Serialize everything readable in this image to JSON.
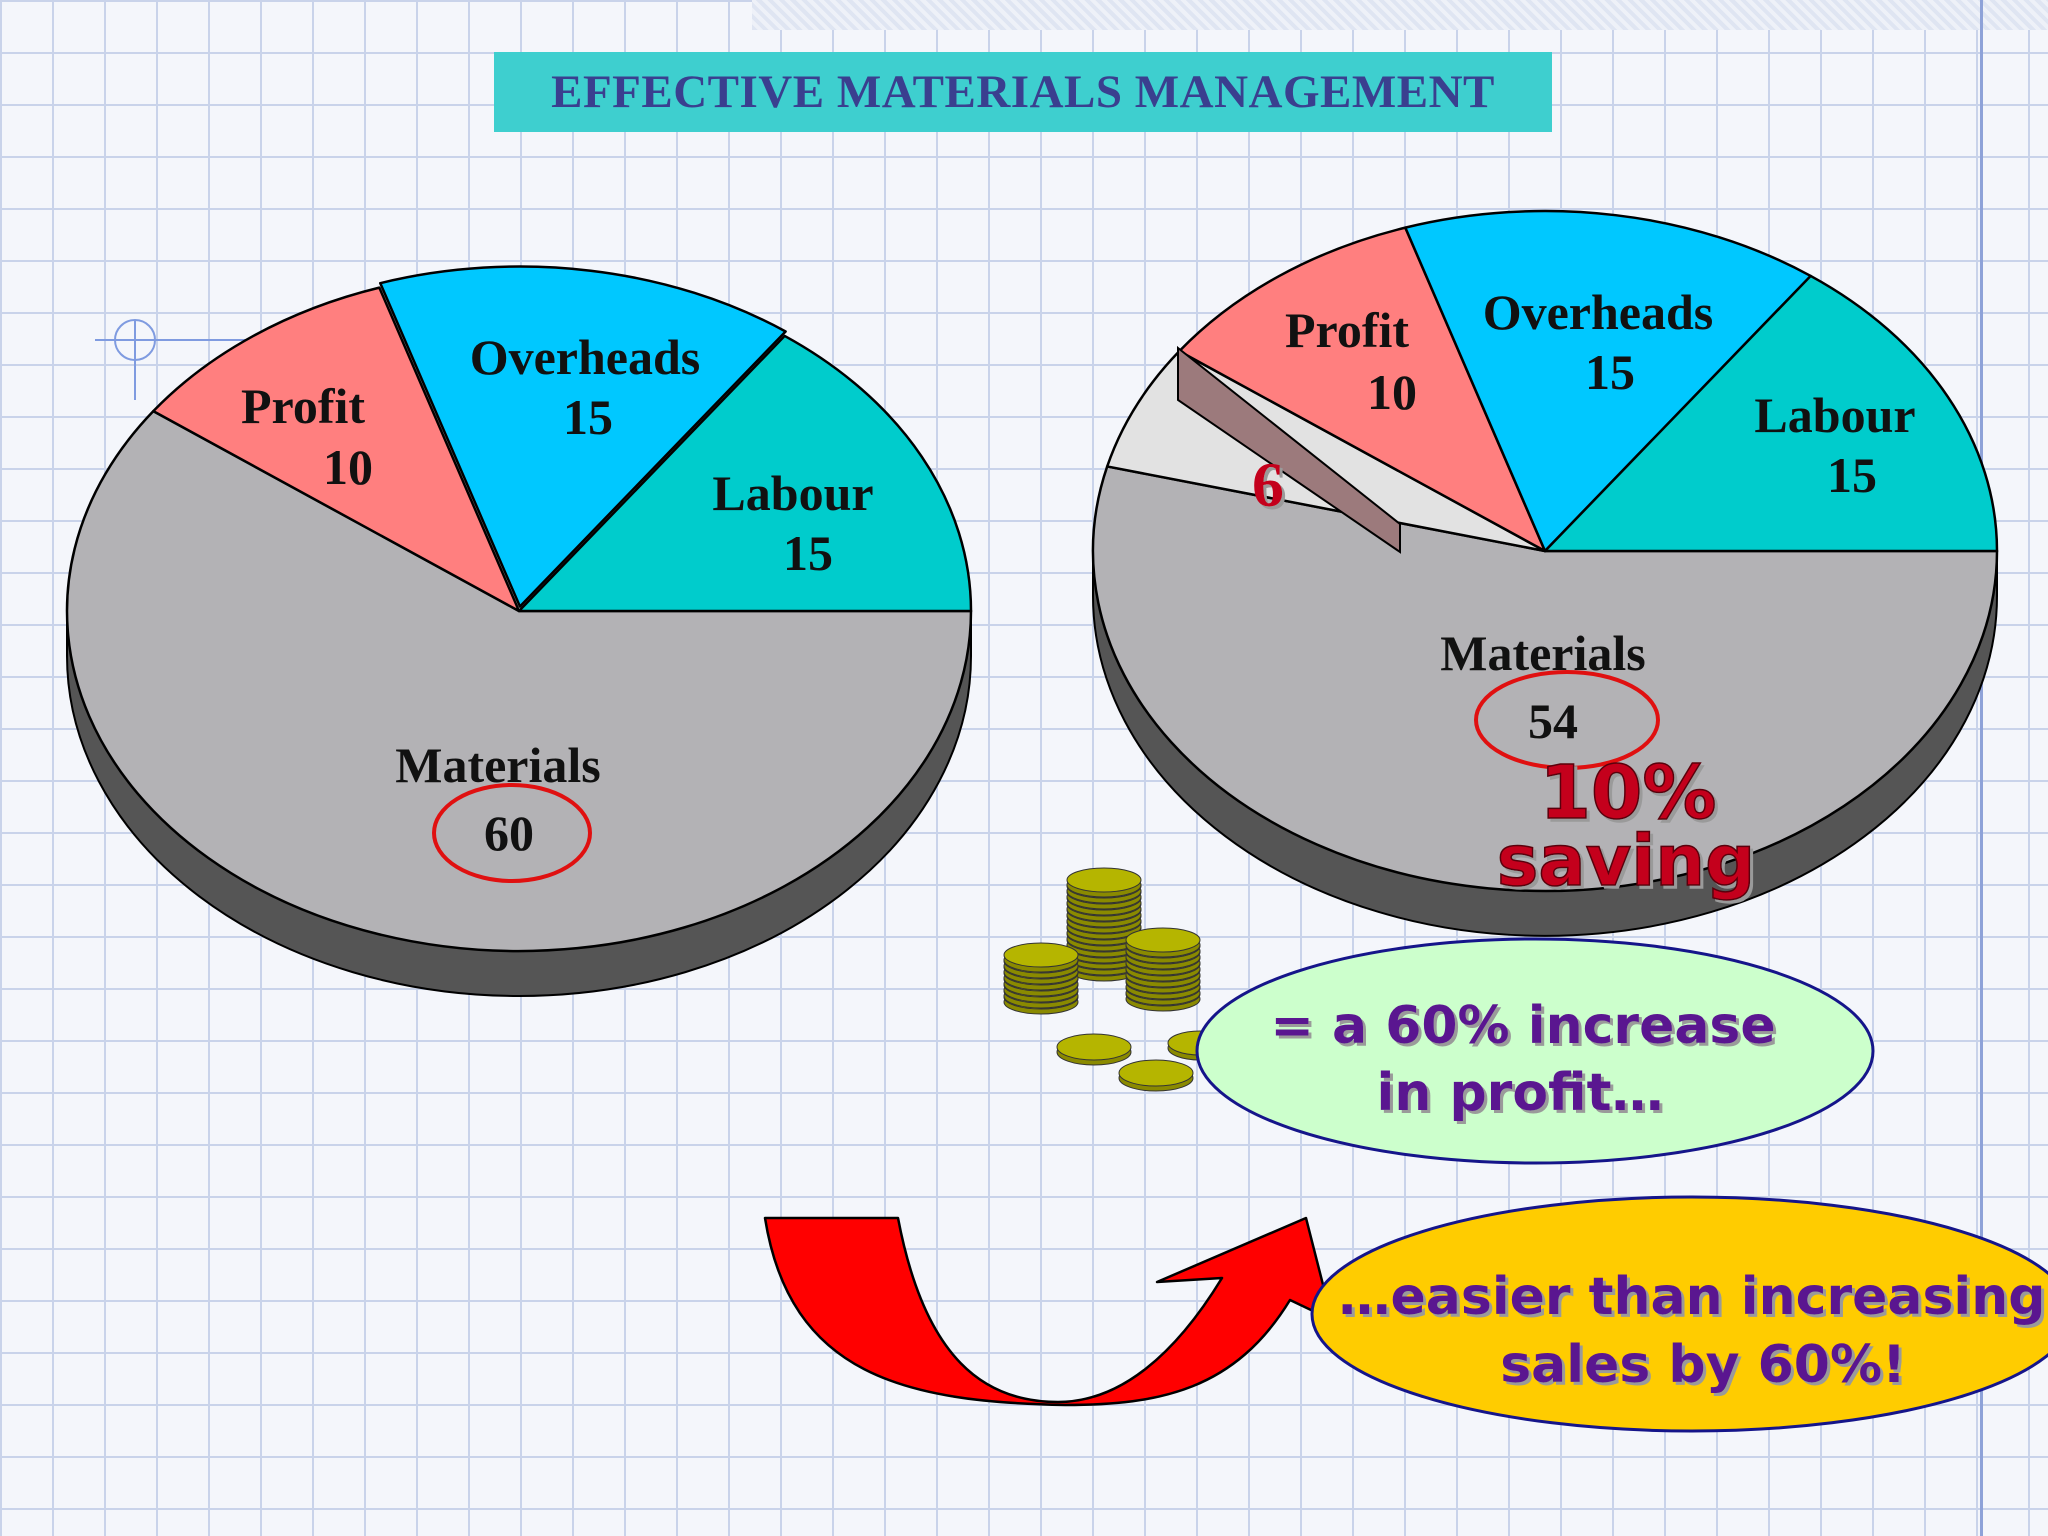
{
  "title": "EFFECTIVE MATERIALS MANAGEMENT",
  "chart_data": [
    {
      "type": "pie",
      "categories": [
        "Materials",
        "Profit",
        "Overheads",
        "Labour"
      ],
      "values": [
        60,
        10,
        15,
        15
      ],
      "colors": [
        "#b3b2b5",
        "#ff7f7f",
        "#00c8ff",
        "#00cccc"
      ],
      "highlight": "Materials"
    },
    {
      "type": "pie",
      "categories": [
        "Materials",
        "Saving",
        "Profit",
        "Overheads",
        "Labour"
      ],
      "values": [
        54,
        6,
        10,
        15,
        15
      ],
      "colors": [
        "#b3b2b5",
        "#e2e2e2",
        "#ff7f7f",
        "#00c8ff",
        "#00cccc"
      ],
      "highlight": "Materials",
      "saving_label": "6"
    }
  ],
  "callouts": {
    "saving_percent": "10%",
    "saving_word": "saving",
    "profit_line1": "= a 60% increase",
    "profit_line2": "in profit…",
    "sales_line1": "…easier than increasing",
    "sales_line2": "sales by 60%!"
  },
  "colors": {
    "title_bg": "#3ecfcf",
    "title_text": "#3a3f8f",
    "circle_highlight": "#e01010",
    "callout_text": "#5a1490",
    "saving_text": "#c4001a",
    "profit_oval_fill": "#ccffcc",
    "sales_oval_fill": "#ffcc00",
    "arrow_fill": "#ff0000",
    "coin_fill": "#b5b500"
  },
  "icons": [
    "coin-stack-icon",
    "curved-arrow-icon"
  ]
}
